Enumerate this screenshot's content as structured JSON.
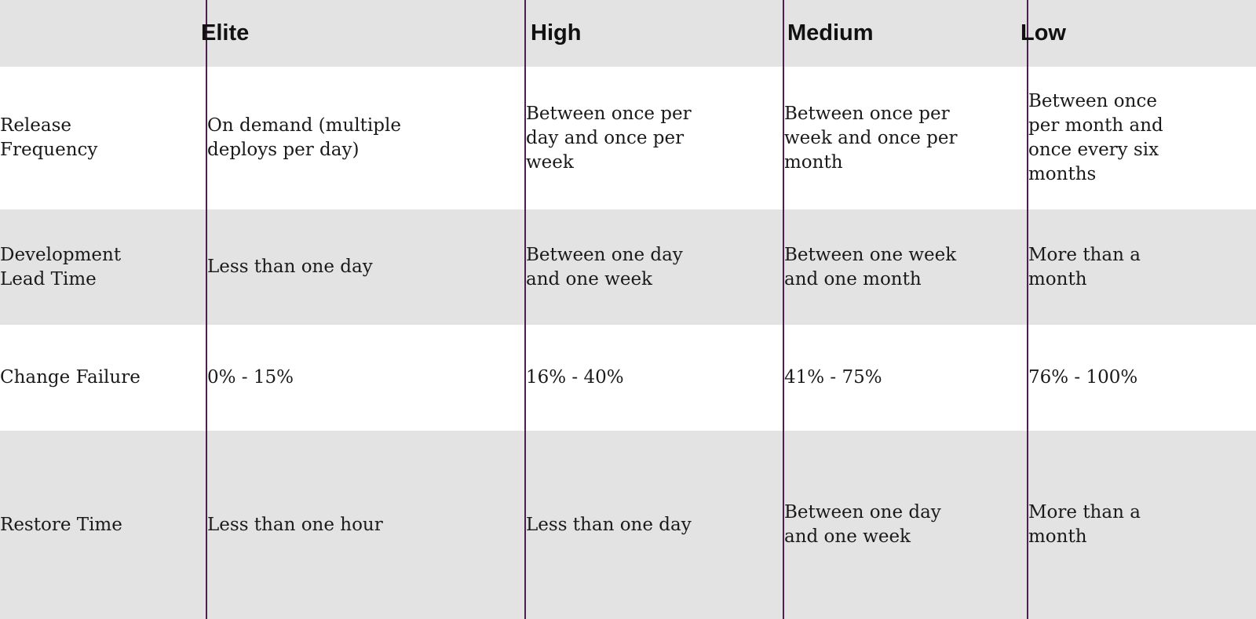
{
  "headers": {
    "corner": "",
    "levels": [
      "Elite",
      "High",
      "Medium",
      "Low"
    ]
  },
  "rows": [
    {
      "metric": "Release Frequency",
      "values": [
        "On demand (multiple deploys per day)",
        "Between once per day and once per week",
        "Between once per week and once per month",
        "Between once per month and once every six months"
      ]
    },
    {
      "metric": "Development Lead Time",
      "values": [
        "Less than one day",
        "Between one day and one week",
        "Between one week and one month",
        "More than a month"
      ]
    },
    {
      "metric": "Change Failure",
      "values": [
        "0% - 15%",
        "16% - 40%",
        "41% - 75%",
        "76% - 100%"
      ]
    },
    {
      "metric": "Restore Time",
      "values": [
        "Less than one hour",
        "Less than one day",
        "Between one day and one week",
        "More than a month"
      ]
    }
  ],
  "colors": {
    "header_band": "#e4e3e4",
    "alt_band": "#e4e3e4",
    "white_band": "#ffffff",
    "divider": "#4b1f4e",
    "text": "#1a1a1a"
  }
}
